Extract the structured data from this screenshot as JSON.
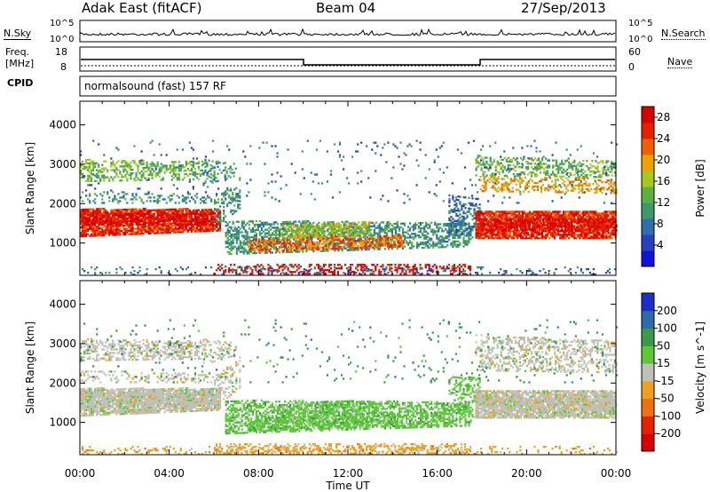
{
  "header": {
    "title": "Adak East (fitACF)",
    "beam": "Beam 04",
    "date": "27/Sep/2013"
  },
  "top_panels": {
    "nsky_label": "N.Sky",
    "nsearch_label": "N.Search",
    "nsky_ticks": [
      "10^5",
      "10^0"
    ],
    "nsearch_ticks": [
      "10^5",
      "10^0"
    ],
    "freq_label_1": "Freq.",
    "freq_label_2": "[MHz]",
    "freq_ticks": [
      "18",
      "8"
    ],
    "nave_label": "Nave",
    "nave_ticks": [
      "60",
      "0"
    ],
    "cpid_label": "CPID",
    "cpid_text": "normalsound (fast) 157 RF"
  },
  "chart_data": [
    {
      "type": "heatmap",
      "quantity": "Power",
      "ylabel": "Slant Range [km]",
      "xlabel": "Time UT",
      "y_ticks": [
        1000,
        2000,
        3000,
        4000
      ],
      "ylim": [
        180,
        4600
      ],
      "x_ticks": [
        "00:00",
        "04:00",
        "08:00",
        "12:00",
        "16:00",
        "20:00",
        "00:00"
      ],
      "xlim_hours": [
        0,
        24
      ],
      "colorbar": {
        "label": "Power [dB]",
        "ticks": [
          "4",
          "8",
          "12",
          "16",
          "20",
          "24",
          "28"
        ],
        "range": [
          0,
          30
        ],
        "colors": [
          "#1010e0",
          "#2840c0",
          "#2e6fa8",
          "#3c9a6a",
          "#5cb040",
          "#a8c81e",
          "#f0a000",
          "#f06000",
          "#e82000",
          "#d80000"
        ]
      }
    },
    {
      "type": "heatmap",
      "quantity": "Velocity",
      "ylabel": "Slant Range [km]",
      "xlabel": "Time UT",
      "y_ticks": [
        1000,
        2000,
        3000,
        4000
      ],
      "ylim": [
        180,
        4600
      ],
      "x_ticks": [
        "00:00",
        "04:00",
        "08:00",
        "12:00",
        "16:00",
        "20:00",
        "00:00"
      ],
      "xlim_hours": [
        0,
        24
      ],
      "colorbar": {
        "label": "Velocity [m s^-1]",
        "ticks": [
          "200",
          "100",
          "50",
          "15",
          "-15",
          "-50",
          "-100",
          "-200"
        ],
        "colors": [
          "#1a30c8",
          "#2d6aa8",
          "#3a9a4a",
          "#5cc838",
          "#c0c0b8",
          "#f0a020",
          "#f07010",
          "#e82000",
          "#d80000"
        ]
      }
    }
  ]
}
